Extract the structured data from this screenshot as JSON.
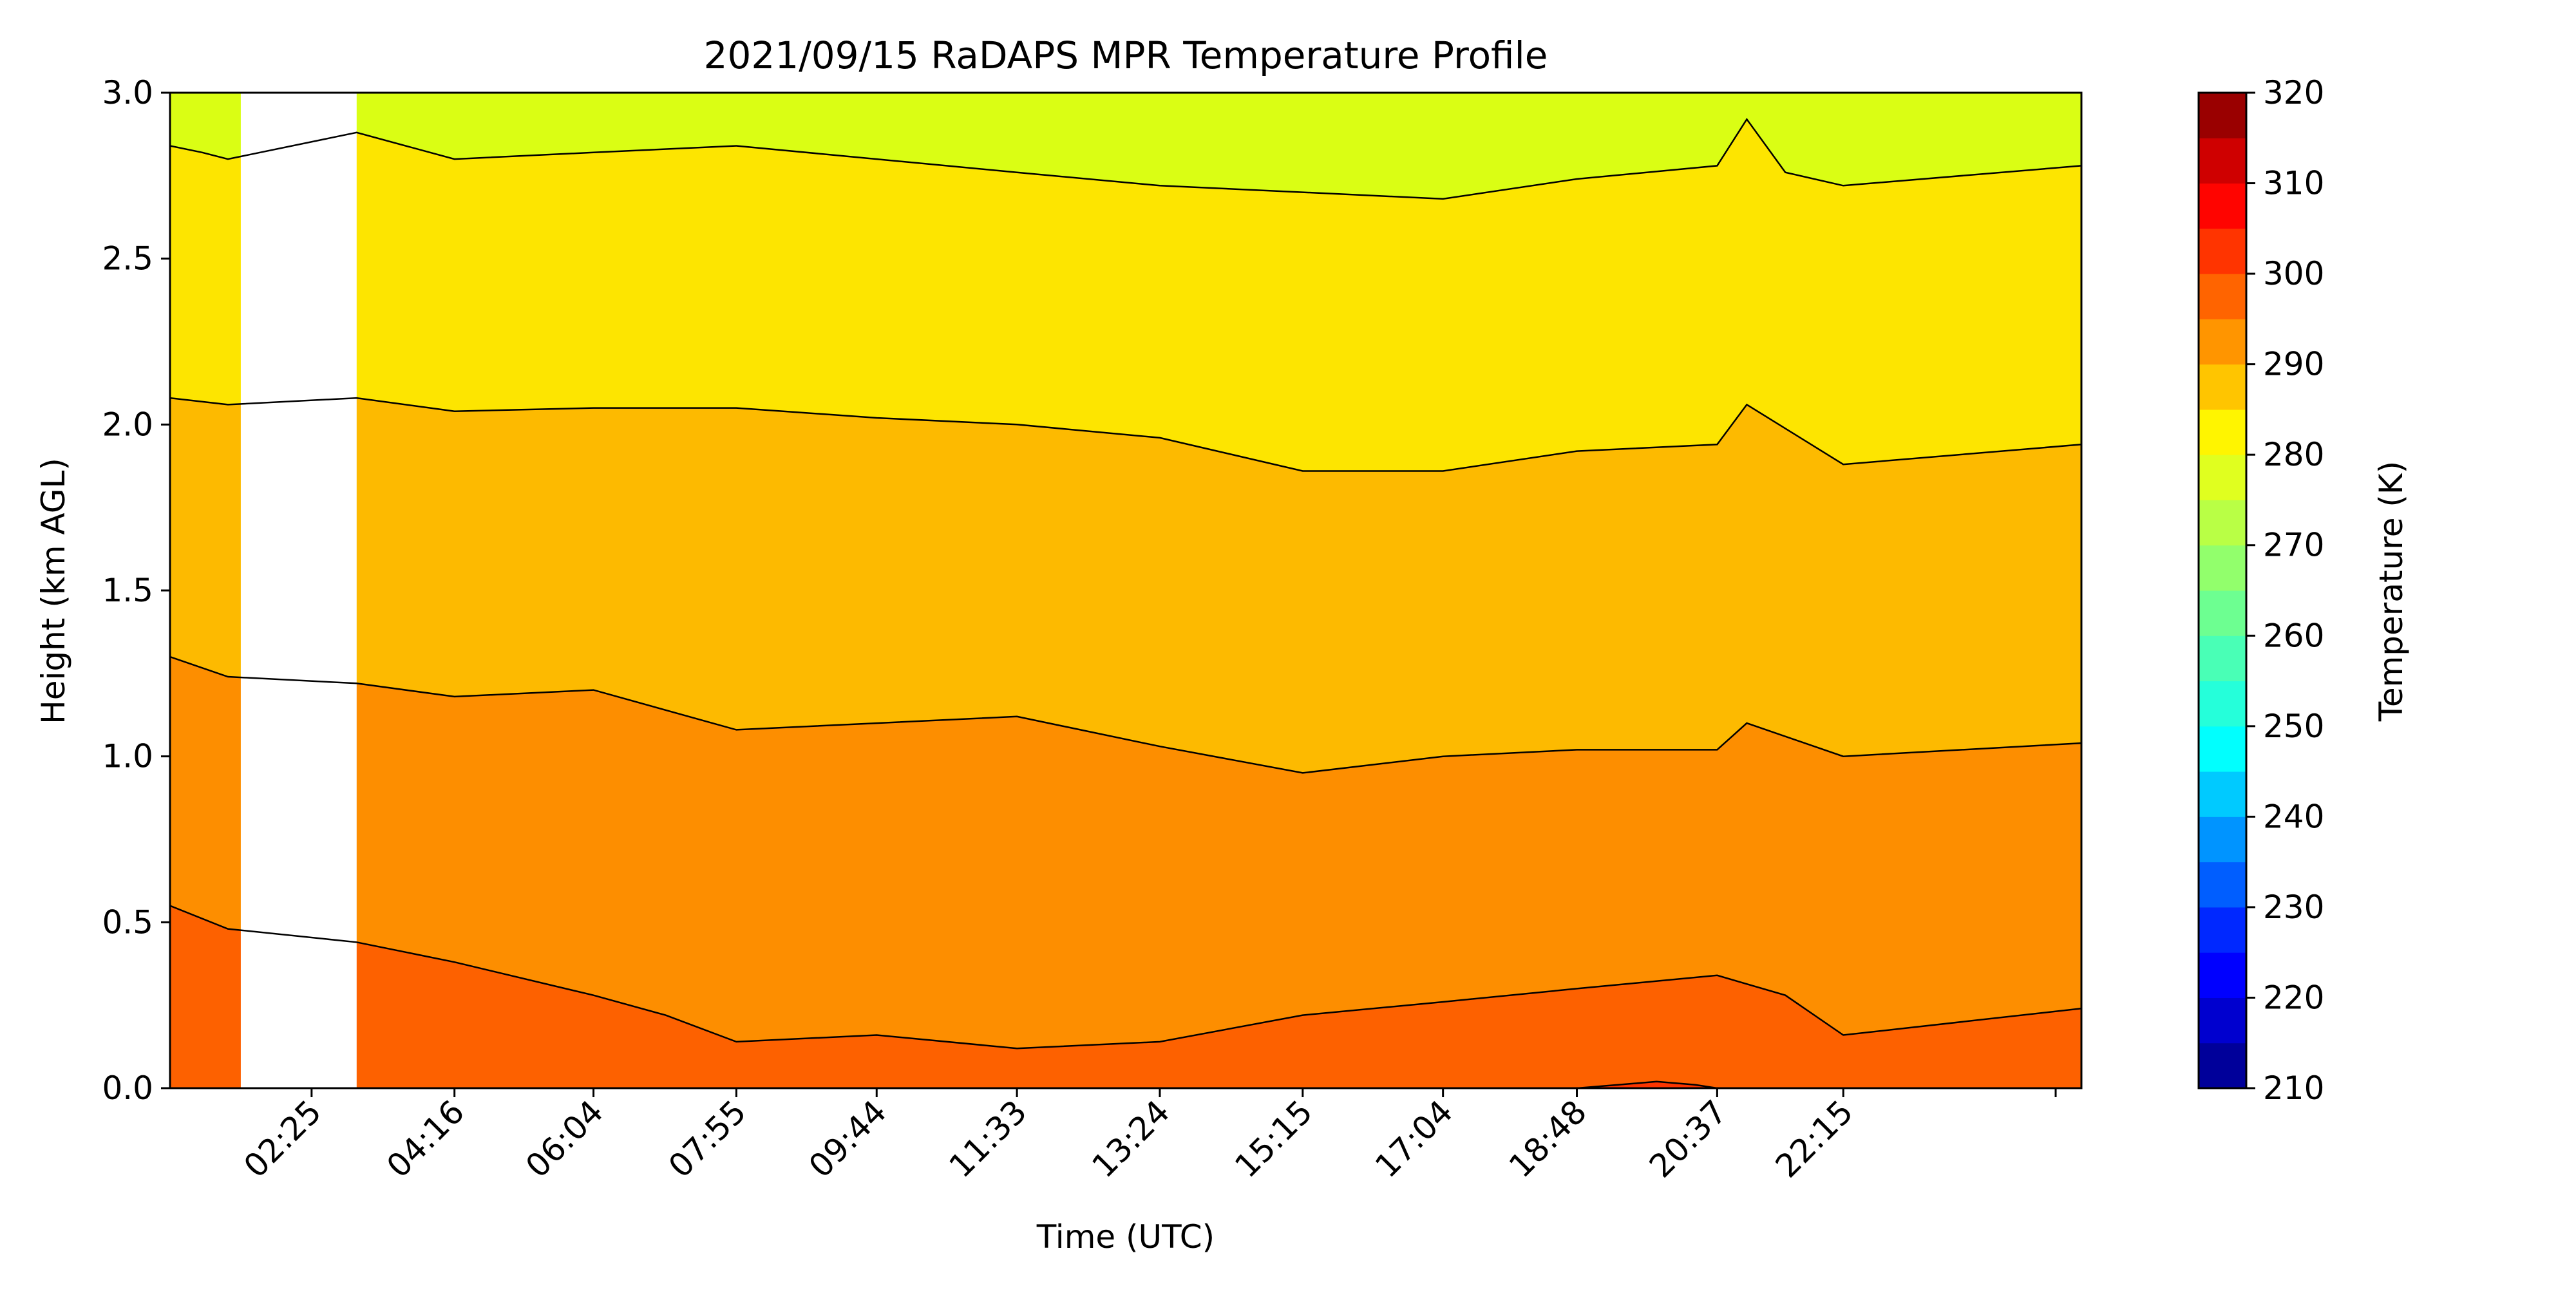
{
  "chart_data": {
    "type": "heatmap",
    "subtype": "filled contour",
    "title": "2021/09/15 RaDAPS MPR Temperature Profile",
    "xlabel": "Time (UTC)",
    "ylabel": "Height (km AGL)",
    "xlim": [
      "00:35",
      "25:20"
    ],
    "ylim": [
      0,
      3.0
    ],
    "x_ticks": [
      "02:25",
      "04:16",
      "06:04",
      "07:55",
      "09:44",
      "11:33",
      "13:24",
      "15:15",
      "17:04",
      "18:48",
      "20:37",
      "22:15"
    ],
    "y_ticks": [
      0.0,
      0.5,
      1.0,
      1.5,
      2.0,
      2.5,
      3.0
    ],
    "grid": false,
    "colorbar": {
      "label": "Temperature (K)",
      "min": 210,
      "max": 320,
      "step": 5,
      "ticks": [
        210,
        220,
        230,
        240,
        250,
        260,
        270,
        280,
        290,
        300,
        310,
        320
      ],
      "colormap": "jet"
    },
    "contour_levels_k": [
      280,
      285,
      290,
      295,
      300
    ],
    "band_colors": {
      "275-280": "#dafe14",
      "280-285": "#fde500",
      "285-290": "#fdba00",
      "290-295": "#fd8e00",
      "295-300": "#fd6100",
      "300-305": "#fc3500"
    },
    "data_gap": {
      "start": "01:30",
      "end": "03:00"
    },
    "isotherms": [
      {
        "level": 280,
        "points": [
          [
            "00:35",
            2.84
          ],
          [
            "01:00",
            2.82
          ],
          [
            "01:20",
            2.8
          ],
          [
            "03:00",
            2.88
          ],
          [
            "04:16",
            2.8
          ],
          [
            "06:04",
            2.82
          ],
          [
            "07:55",
            2.84
          ],
          [
            "09:44",
            2.8
          ],
          [
            "11:33",
            2.76
          ],
          [
            "13:24",
            2.72
          ],
          [
            "15:15",
            2.7
          ],
          [
            "17:04",
            2.68
          ],
          [
            "18:48",
            2.74
          ],
          [
            "20:37",
            2.78
          ],
          [
            "21:00",
            2.92
          ],
          [
            "21:30",
            2.76
          ],
          [
            "22:15",
            2.72
          ],
          [
            "25:20",
            2.78
          ]
        ]
      },
      {
        "level": 285,
        "points": [
          [
            "00:35",
            2.08
          ],
          [
            "01:20",
            2.06
          ],
          [
            "03:00",
            2.08
          ],
          [
            "04:16",
            2.04
          ],
          [
            "06:04",
            2.05
          ],
          [
            "07:55",
            2.05
          ],
          [
            "09:44",
            2.02
          ],
          [
            "11:33",
            2.0
          ],
          [
            "13:24",
            1.96
          ],
          [
            "15:15",
            1.86
          ],
          [
            "17:04",
            1.86
          ],
          [
            "18:48",
            1.92
          ],
          [
            "20:37",
            1.94
          ],
          [
            "21:00",
            2.06
          ],
          [
            "22:15",
            1.88
          ],
          [
            "25:20",
            1.94
          ]
        ]
      },
      {
        "level": 290,
        "points": [
          [
            "00:35",
            1.3
          ],
          [
            "01:20",
            1.24
          ],
          [
            "03:00",
            1.22
          ],
          [
            "04:16",
            1.18
          ],
          [
            "06:04",
            1.2
          ],
          [
            "07:55",
            1.08
          ],
          [
            "09:44",
            1.1
          ],
          [
            "11:33",
            1.12
          ],
          [
            "13:24",
            1.03
          ],
          [
            "15:15",
            0.95
          ],
          [
            "17:04",
            1.0
          ],
          [
            "18:48",
            1.02
          ],
          [
            "20:37",
            1.02
          ],
          [
            "21:00",
            1.1
          ],
          [
            "22:15",
            1.0
          ],
          [
            "25:20",
            1.04
          ]
        ]
      },
      {
        "level": 295,
        "points": [
          [
            "00:35",
            0.55
          ],
          [
            "01:20",
            0.48
          ],
          [
            "03:00",
            0.44
          ],
          [
            "04:16",
            0.38
          ],
          [
            "06:04",
            0.28
          ],
          [
            "07:00",
            0.22
          ],
          [
            "07:55",
            0.14
          ],
          [
            "09:44",
            0.16
          ],
          [
            "11:33",
            0.12
          ],
          [
            "13:24",
            0.14
          ],
          [
            "15:15",
            0.22
          ],
          [
            "17:04",
            0.26
          ],
          [
            "18:48",
            0.3
          ],
          [
            "20:37",
            0.34
          ],
          [
            "21:30",
            0.28
          ],
          [
            "22:15",
            0.16
          ],
          [
            "25:20",
            0.24
          ]
        ]
      },
      {
        "level": 300,
        "points": [
          [
            "18:48",
            0.0
          ],
          [
            "19:20",
            0.01
          ],
          [
            "19:50",
            0.02
          ],
          [
            "20:20",
            0.01
          ],
          [
            "20:37",
            0.0
          ]
        ]
      }
    ]
  }
}
